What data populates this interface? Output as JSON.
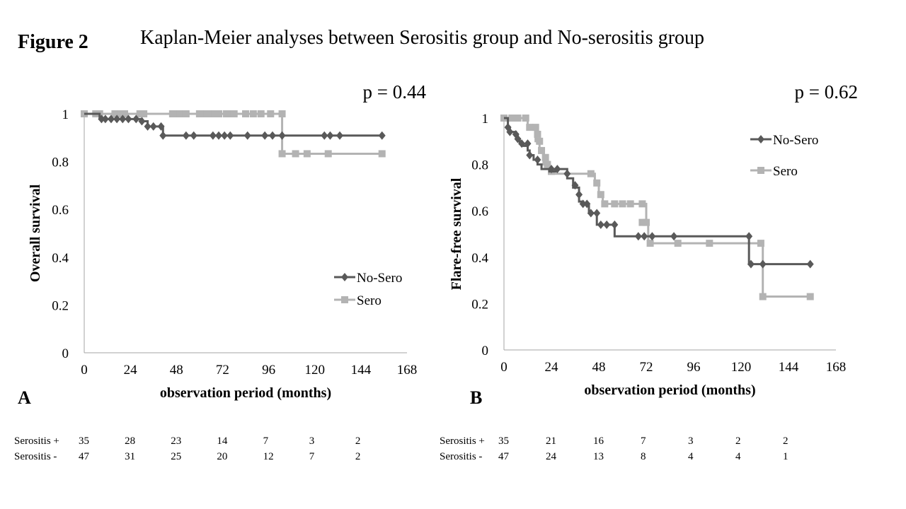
{
  "figure_label": "Figure 2",
  "title": "Kaplan-Meier analyses between Serositis group and No-serositis group",
  "colors": {
    "no_sero": "#595959",
    "sero": "#b3b3b3",
    "axis": "#a6a6a6"
  },
  "chart_data": [
    {
      "type": "line",
      "panel": "A",
      "title": "",
      "p_value": "p = 0.44",
      "xlabel": "observation period (months)",
      "ylabel": "Overall survival",
      "xlim": [
        0,
        168
      ],
      "ylim": [
        0,
        1
      ],
      "xticks": [
        "0",
        "24",
        "48",
        "72",
        "96",
        "120",
        "144",
        "168"
      ],
      "yticks": [
        "0",
        "0.2",
        "0.4",
        "0.6",
        "0.8",
        "1"
      ],
      "legend_position": "bottom-right",
      "series": [
        {
          "name": "No-Sero",
          "marker": "diamond",
          "steps": [
            [
              0,
              1
            ],
            [
              8,
              0.978
            ],
            [
              30,
              0.969
            ],
            [
              33,
              0.947
            ],
            [
              41,
              0.909
            ],
            [
              155,
              0.909
            ]
          ],
          "censor": [
            [
              9,
              0.978
            ],
            [
              11,
              0.978
            ],
            [
              14,
              0.978
            ],
            [
              17,
              0.978
            ],
            [
              20,
              0.978
            ],
            [
              23,
              0.978
            ],
            [
              27,
              0.978
            ],
            [
              30,
              0.969
            ],
            [
              33,
              0.947
            ],
            [
              36,
              0.947
            ],
            [
              40,
              0.947
            ],
            [
              41,
              0.909
            ],
            [
              53,
              0.909
            ],
            [
              57,
              0.909
            ],
            [
              67,
              0.909
            ],
            [
              70,
              0.909
            ],
            [
              73,
              0.909
            ],
            [
              76,
              0.909
            ],
            [
              85,
              0.909
            ],
            [
              94,
              0.909
            ],
            [
              98,
              0.909
            ],
            [
              103,
              0.909
            ],
            [
              125,
              0.909
            ],
            [
              128,
              0.909
            ],
            [
              133,
              0.909
            ],
            [
              155,
              0.909
            ]
          ]
        },
        {
          "name": "Sero",
          "marker": "square",
          "steps": [
            [
              0,
              1
            ],
            [
              103,
              1
            ],
            [
              103,
              0.833
            ],
            [
              155,
              0.833
            ]
          ],
          "censor": [
            [
              0,
              1
            ],
            [
              6,
              1
            ],
            [
              8,
              1
            ],
            [
              16,
              1
            ],
            [
              18,
              1
            ],
            [
              19,
              1
            ],
            [
              21,
              1
            ],
            [
              29,
              1
            ],
            [
              31,
              1
            ],
            [
              46,
              1
            ],
            [
              48,
              1
            ],
            [
              50,
              1
            ],
            [
              53,
              1
            ],
            [
              60,
              1
            ],
            [
              62,
              1
            ],
            [
              64,
              1
            ],
            [
              66,
              1
            ],
            [
              68,
              1
            ],
            [
              70,
              1
            ],
            [
              74,
              1
            ],
            [
              76,
              1
            ],
            [
              78,
              1
            ],
            [
              84,
              1
            ],
            [
              88,
              1
            ],
            [
              92,
              1
            ],
            [
              97,
              1
            ],
            [
              103,
              1
            ],
            [
              103,
              0.833
            ],
            [
              110,
              0.833
            ],
            [
              116,
              0.833
            ],
            [
              127,
              0.833
            ],
            [
              155,
              0.833
            ]
          ]
        }
      ],
      "risk_table": {
        "rows": [
          {
            "label": "Serositis +",
            "values": [
              "35",
              "28",
              "23",
              "14",
              "7",
              "3",
              "2"
            ]
          },
          {
            "label": "Serositis -",
            "values": [
              "47",
              "31",
              "25",
              "20",
              "12",
              "7",
              "2"
            ]
          }
        ]
      }
    },
    {
      "type": "line",
      "panel": "B",
      "title": "",
      "p_value": "p = 0.62",
      "xlabel": "observation period (months)",
      "ylabel": "Flare-free survival",
      "xlim": [
        0,
        168
      ],
      "ylim": [
        0,
        1
      ],
      "xticks": [
        "0",
        "24",
        "48",
        "72",
        "96",
        "120",
        "144",
        "168"
      ],
      "yticks": [
        "0",
        "0.2",
        "0.4",
        "0.6",
        "0.8",
        "1"
      ],
      "legend_position": "top-right",
      "series": [
        {
          "name": "No-Sero",
          "marker": "diamond",
          "steps": [
            [
              0,
              1
            ],
            [
              2,
              0.96
            ],
            [
              3,
              0.94
            ],
            [
              6,
              0.93
            ],
            [
              7,
              0.91
            ],
            [
              8,
              0.89
            ],
            [
              10,
              0.88
            ],
            [
              12,
              0.86
            ],
            [
              13,
              0.84
            ],
            [
              15,
              0.82
            ],
            [
              17,
              0.8
            ],
            [
              19,
              0.78
            ],
            [
              23,
              0.77
            ],
            [
              26,
              0.78
            ],
            [
              32,
              0.74
            ],
            [
              35,
              0.7
            ],
            [
              38,
              0.64
            ],
            [
              40,
              0.63
            ],
            [
              43,
              0.59
            ],
            [
              47,
              0.54
            ],
            [
              52,
              0.54
            ],
            [
              56,
              0.49
            ],
            [
              124,
              0.49
            ],
            [
              124,
              0.37
            ],
            [
              155,
              0.37
            ]
          ],
          "censor": [
            [
              2,
              0.96
            ],
            [
              3,
              0.94
            ],
            [
              6,
              0.93
            ],
            [
              7,
              0.91
            ],
            [
              9,
              0.89
            ],
            [
              12,
              0.89
            ],
            [
              13,
              0.84
            ],
            [
              17,
              0.82
            ],
            [
              24,
              0.78
            ],
            [
              27,
              0.78
            ],
            [
              32,
              0.76
            ],
            [
              36,
              0.71
            ],
            [
              38,
              0.67
            ],
            [
              40,
              0.63
            ],
            [
              42,
              0.63
            ],
            [
              44,
              0.59
            ],
            [
              47,
              0.59
            ],
            [
              49,
              0.54
            ],
            [
              52,
              0.54
            ],
            [
              56,
              0.54
            ],
            [
              68,
              0.49
            ],
            [
              71,
              0.49
            ],
            [
              75,
              0.49
            ],
            [
              86,
              0.49
            ],
            [
              124,
              0.49
            ],
            [
              125,
              0.37
            ],
            [
              131,
              0.37
            ],
            [
              155,
              0.37
            ]
          ]
        },
        {
          "name": "Sero",
          "marker": "square",
          "steps": [
            [
              0,
              1
            ],
            [
              10,
              1
            ],
            [
              12,
              0.96
            ],
            [
              15,
              0.96
            ],
            [
              16,
              0.9
            ],
            [
              18,
              0.86
            ],
            [
              20,
              0.8
            ],
            [
              23,
              0.76
            ],
            [
              45,
              0.76
            ],
            [
              46,
              0.72
            ],
            [
              48,
              0.67
            ],
            [
              50,
              0.63
            ],
            [
              71,
              0.63
            ],
            [
              72,
              0.55
            ],
            [
              73,
              0.46
            ],
            [
              130,
              0.46
            ],
            [
              131,
              0.23
            ],
            [
              155,
              0.23
            ]
          ],
          "censor": [
            [
              0,
              1
            ],
            [
              4,
              1
            ],
            [
              7,
              1
            ],
            [
              11,
              1
            ],
            [
              13,
              0.96
            ],
            [
              16,
              0.96
            ],
            [
              17,
              0.93
            ],
            [
              18,
              0.9
            ],
            [
              19,
              0.86
            ],
            [
              21,
              0.83
            ],
            [
              22,
              0.8
            ],
            [
              24,
              0.77
            ],
            [
              44,
              0.76
            ],
            [
              47,
              0.72
            ],
            [
              49,
              0.67
            ],
            [
              51,
              0.63
            ],
            [
              56,
              0.63
            ],
            [
              60,
              0.63
            ],
            [
              64,
              0.63
            ],
            [
              70,
              0.63
            ],
            [
              70,
              0.55
            ],
            [
              72,
              0.55
            ],
            [
              74,
              0.46
            ],
            [
              88,
              0.46
            ],
            [
              104,
              0.46
            ],
            [
              130,
              0.46
            ],
            [
              131,
              0.23
            ],
            [
              155,
              0.23
            ]
          ]
        }
      ],
      "risk_table": {
        "rows": [
          {
            "label": "Serositis +",
            "values": [
              "35",
              "21",
              "16",
              "7",
              "3",
              "2",
              "2"
            ]
          },
          {
            "label": "Serositis -",
            "values": [
              "47",
              "24",
              "13",
              "8",
              "4",
              "4",
              "1"
            ]
          }
        ]
      }
    }
  ]
}
